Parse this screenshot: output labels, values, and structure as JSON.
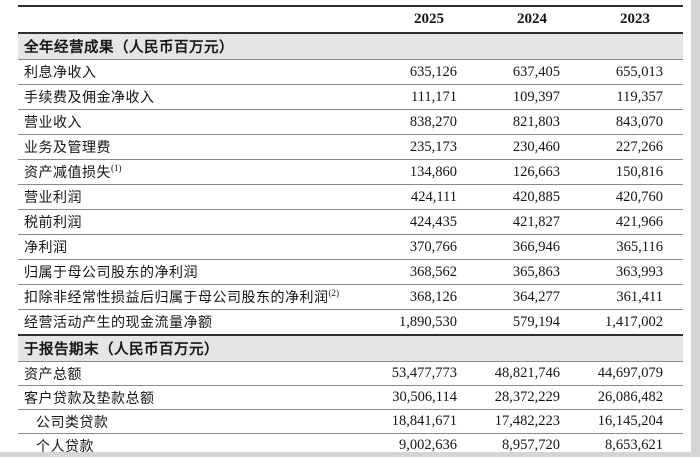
{
  "table": {
    "year_columns": [
      "2025",
      "2024",
      "2023"
    ],
    "sections": [
      {
        "header": "全年经营成果（人民币百万元）",
        "rows": [
          {
            "label": "利息净收入",
            "values": [
              "635,126",
              "637,405",
              "655,013"
            ]
          },
          {
            "label": "手续费及佣金净收入",
            "values": [
              "111,171",
              "109,397",
              "119,357"
            ]
          },
          {
            "label": "营业收入",
            "values": [
              "838,270",
              "821,803",
              "843,070"
            ]
          },
          {
            "label": "业务及管理费",
            "values": [
              "235,173",
              "230,460",
              "227,266"
            ]
          },
          {
            "label": "资产减值损失",
            "note": "(1)",
            "values": [
              "134,860",
              "126,663",
              "150,816"
            ]
          },
          {
            "label": "营业利润",
            "values": [
              "424,111",
              "420,885",
              "420,760"
            ]
          },
          {
            "label": "税前利润",
            "values": [
              "424,435",
              "421,827",
              "421,966"
            ]
          },
          {
            "label": "净利润",
            "values": [
              "370,766",
              "366,946",
              "365,116"
            ]
          },
          {
            "label": "归属于母公司股东的净利润",
            "values": [
              "368,562",
              "365,863",
              "363,993"
            ]
          },
          {
            "label": "扣除非经常性损益后归属于母公司股东的净利润",
            "note": "(2)",
            "values": [
              "368,126",
              "364,277",
              "361,411"
            ]
          },
          {
            "label": "经营活动产生的现金流量净额",
            "values": [
              "1,890,530",
              "579,194",
              "1,417,002"
            ]
          }
        ]
      },
      {
        "header": "于报告期末（人民币百万元）",
        "rows": [
          {
            "label": "资产总额",
            "values": [
              "53,477,773",
              "48,821,746",
              "44,697,079"
            ]
          },
          {
            "label": "客户贷款及垫款总额",
            "values": [
              "30,506,114",
              "28,372,229",
              "26,086,482"
            ]
          },
          {
            "label": "公司类贷款",
            "indent": true,
            "values": [
              "18,841,671",
              "17,482,223",
              "16,145,204"
            ]
          },
          {
            "label": "个人贷款",
            "indent": true,
            "values": [
              "9,002,636",
              "8,957,720",
              "8,653,621"
            ]
          }
        ]
      }
    ]
  },
  "colors": {
    "section_bg": "#e5e5e5",
    "thick_line": "#2e2e2e",
    "thin_line": "#8a8a8a",
    "text": "#151515",
    "page_edge": "#d5d5d5"
  }
}
